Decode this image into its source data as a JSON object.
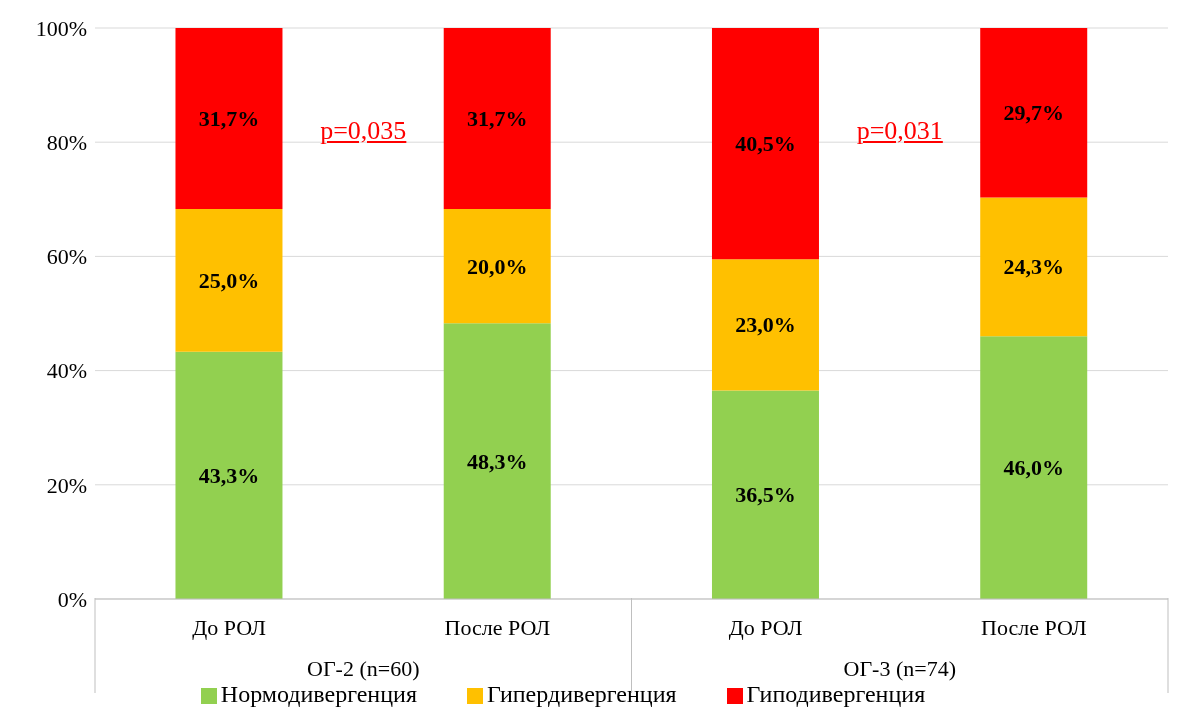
{
  "chart_data": {
    "type": "bar",
    "stacked": true,
    "categories": [
      "До РОЛ",
      "После РОЛ",
      "До РОЛ",
      "После РОЛ"
    ],
    "series": [
      {
        "name": "Нормодивергенция",
        "color": "#92d050",
        "values": [
          43.3,
          48.3,
          36.5,
          46.0
        ],
        "value_labels": [
          "43,3%",
          "48,3%",
          "36,5%",
          "46,0%"
        ]
      },
      {
        "name": "Гипердивергенция",
        "color": "#ffc000",
        "values": [
          25.0,
          20.0,
          23.0,
          24.3
        ],
        "value_labels": [
          "25,0%",
          "20,0%",
          "23,0%",
          "24,3%"
        ]
      },
      {
        "name": "Гиподивергенция",
        "color": "#ff0000",
        "values": [
          31.7,
          31.7,
          40.5,
          29.7
        ],
        "value_labels": [
          "31,7%",
          "31,7%",
          "40,5%",
          "29,7%"
        ]
      }
    ],
    "ylim": [
      0,
      100
    ],
    "yticks": [
      {
        "value": 0,
        "label": "0%"
      },
      {
        "value": 20,
        "label": "20%"
      },
      {
        "value": 40,
        "label": "40%"
      },
      {
        "value": 60,
        "label": "60%"
      },
      {
        "value": 80,
        "label": "80%"
      },
      {
        "value": 100,
        "label": "100%"
      }
    ],
    "grid": "y",
    "legend": "bottom",
    "annotations": [
      "p=0,035",
      "p=0,031",
      "ОГ-2 (n=60)",
      "ОГ-3 (n=74)"
    ]
  }
}
